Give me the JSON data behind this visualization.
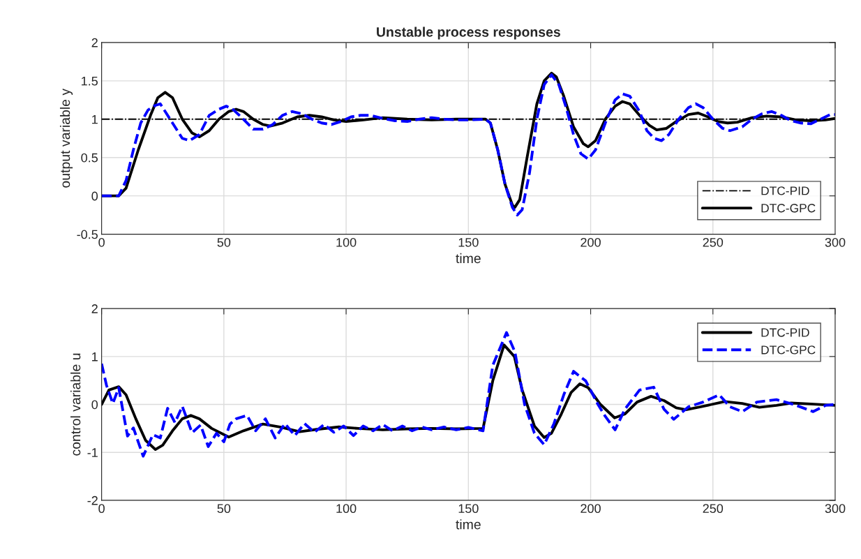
{
  "chart_data": [
    {
      "type": "line",
      "title": "Unstable process responses",
      "xlabel": "time",
      "ylabel": "output variable y",
      "xlim": [
        0,
        300
      ],
      "xticks": [
        0,
        50,
        100,
        150,
        200,
        250,
        300
      ],
      "ylim": [
        -0.5,
        2
      ],
      "yticks": [
        -0.5,
        0,
        0.5,
        1,
        1.5,
        2
      ],
      "grid": true,
      "legend": "bottom right",
      "series": [
        {
          "name": "DTC-PID",
          "color": "#000000",
          "line_style": "dashdot",
          "x": [
            0,
            300
          ],
          "values": [
            1,
            1
          ]
        },
        {
          "name": "DTC-GPC",
          "color": "#000000",
          "line_style": "solid",
          "x": [
            0,
            7,
            10,
            15,
            20,
            23,
            26,
            29,
            33,
            37,
            40,
            44,
            48,
            52,
            55,
            58,
            62,
            66,
            69,
            74,
            80,
            85,
            90,
            95,
            100,
            107,
            115,
            125,
            135,
            145,
            157,
            159,
            162,
            165,
            168,
            169,
            171,
            174,
            178,
            181,
            184,
            186,
            189,
            193,
            197,
            199,
            202,
            206,
            210,
            213,
            216,
            220,
            224,
            227,
            231,
            235,
            240,
            244,
            248,
            252,
            256,
            260,
            266,
            272,
            278,
            284,
            290,
            296,
            300
          ],
          "values": [
            0,
            0,
            0.1,
            0.6,
            1.05,
            1.28,
            1.35,
            1.28,
            1.0,
            0.82,
            0.77,
            0.85,
            1.0,
            1.1,
            1.13,
            1.1,
            1.0,
            0.93,
            0.91,
            0.95,
            1.03,
            1.05,
            1.03,
            0.99,
            0.97,
            0.99,
            1.02,
            1.0,
            0.99,
            1.0,
            1.0,
            0.95,
            0.6,
            0.15,
            -0.12,
            -0.15,
            -0.05,
            0.5,
            1.2,
            1.5,
            1.6,
            1.55,
            1.3,
            0.9,
            0.68,
            0.64,
            0.72,
            1.0,
            1.17,
            1.23,
            1.2,
            1.05,
            0.92,
            0.86,
            0.88,
            0.97,
            1.06,
            1.08,
            1.03,
            0.97,
            0.95,
            0.96,
            1.02,
            1.04,
            1.03,
            0.99,
            0.98,
            0.99,
            1.01
          ]
        },
        {
          "color": "#0000ff",
          "line_style": "dashed",
          "x": [
            0,
            7,
            10,
            13,
            16,
            19,
            22,
            24,
            26,
            29,
            33,
            36,
            40,
            44,
            48,
            51,
            54,
            58,
            62,
            66,
            70,
            74,
            78,
            82,
            86,
            90,
            94,
            98,
            102,
            106,
            110,
            115,
            120,
            125,
            130,
            135,
            140,
            145,
            150,
            157,
            159,
            162,
            165,
            168,
            170,
            172,
            175,
            178,
            181,
            184,
            187,
            190,
            193,
            196,
            199,
            202,
            206,
            210,
            213,
            216,
            220,
            223,
            226,
            229,
            232,
            236,
            240,
            243,
            246,
            250,
            254,
            257,
            262,
            266,
            270,
            274,
            278,
            282,
            286,
            290,
            294,
            298,
            300
          ],
          "values": [
            0,
            0,
            0.2,
            0.6,
            0.95,
            1.12,
            1.18,
            1.2,
            1.1,
            0.95,
            0.75,
            0.72,
            0.8,
            1.05,
            1.13,
            1.17,
            1.12,
            1.0,
            0.87,
            0.87,
            0.93,
            1.05,
            1.1,
            1.07,
            1.0,
            0.95,
            0.93,
            0.97,
            1.03,
            1.05,
            1.05,
            1.01,
            0.98,
            0.97,
            1.0,
            1.02,
            1.0,
            0.99,
            0.99,
            1.0,
            0.95,
            0.6,
            0.15,
            -0.15,
            -0.25,
            -0.18,
            0.3,
            1.0,
            1.45,
            1.58,
            1.45,
            1.15,
            0.8,
            0.55,
            0.48,
            0.6,
            0.95,
            1.25,
            1.33,
            1.3,
            1.1,
            0.85,
            0.75,
            0.72,
            0.8,
            1.0,
            1.15,
            1.2,
            1.15,
            1.0,
            0.88,
            0.85,
            0.9,
            1.0,
            1.07,
            1.1,
            1.05,
            0.98,
            0.95,
            0.94,
            1.0,
            1.06,
            1.06
          ]
        }
      ]
    },
    {
      "type": "line",
      "xlabel": "time",
      "ylabel": "control variable u",
      "xlim": [
        0,
        300
      ],
      "xticks": [
        0,
        50,
        100,
        150,
        200,
        250,
        300
      ],
      "ylim": [
        -2,
        2
      ],
      "yticks": [
        -2,
        -1,
        0,
        1,
        2
      ],
      "grid": true,
      "legend": "top right",
      "series": [
        {
          "name": "DTC-PID",
          "color": "#000000",
          "line_style": "solid",
          "x": [
            0,
            3,
            7,
            10,
            14,
            18,
            22,
            25,
            29,
            33,
            36.5,
            40,
            45,
            52,
            58,
            66,
            73,
            81,
            88,
            97,
            105,
            115,
            125,
            135,
            145,
            156,
            160,
            164.6,
            168.8,
            172,
            177,
            181,
            184,
            188,
            192,
            195.6,
            199,
            204,
            209.8,
            214,
            219,
            224.7,
            230,
            235,
            239,
            245,
            254.8,
            262,
            269,
            276,
            282,
            290,
            300
          ],
          "values": [
            0,
            0.3,
            0.37,
            0.2,
            -0.3,
            -0.75,
            -0.94,
            -0.85,
            -0.55,
            -0.3,
            -0.23,
            -0.3,
            -0.5,
            -0.68,
            -0.55,
            -0.41,
            -0.47,
            -0.57,
            -0.52,
            -0.47,
            -0.5,
            -0.53,
            -0.51,
            -0.5,
            -0.51,
            -0.5,
            0.5,
            1.24,
            1.0,
            0.3,
            -0.45,
            -0.69,
            -0.6,
            -0.2,
            0.25,
            0.43,
            0.35,
            0.0,
            -0.28,
            -0.2,
            0.05,
            0.17,
            0.08,
            -0.07,
            -0.11,
            -0.05,
            0.06,
            0.02,
            -0.06,
            -0.02,
            0.03,
            0.01,
            -0.02
          ]
        },
        {
          "name": "DTC-GPC",
          "color": "#0000ff",
          "line_style": "dashed",
          "x": [
            0,
            2,
            4.6,
            7,
            10.6,
            13,
            17,
            21,
            24,
            27,
            30,
            33,
            37,
            40.5,
            43.6,
            47,
            50,
            52.5,
            55,
            59.5,
            63,
            67,
            71,
            75,
            79,
            83,
            87,
            91,
            95,
            99,
            103,
            107,
            111,
            115,
            119,
            123,
            127,
            131,
            135,
            140,
            145,
            150,
            156,
            160,
            165.6,
            169,
            173,
            177,
            181,
            185,
            189,
            193,
            198,
            203,
            206,
            210,
            214,
            217,
            220,
            225.8,
            230,
            234,
            240,
            246,
            252.6,
            257,
            262,
            268,
            276,
            283,
            291,
            296,
            300
          ],
          "values": [
            0.85,
            0.4,
            0.02,
            0.35,
            -0.66,
            -0.49,
            -1.08,
            -0.63,
            -0.7,
            -0.08,
            -0.38,
            -0.04,
            -0.59,
            -0.43,
            -0.88,
            -0.6,
            -0.78,
            -0.41,
            -0.3,
            -0.23,
            -0.55,
            -0.3,
            -0.7,
            -0.4,
            -0.65,
            -0.4,
            -0.58,
            -0.42,
            -0.58,
            -0.45,
            -0.65,
            -0.45,
            -0.55,
            -0.42,
            -0.55,
            -0.45,
            -0.55,
            -0.47,
            -0.53,
            -0.47,
            -0.53,
            -0.48,
            -0.55,
            0.82,
            1.5,
            1.1,
            0.0,
            -0.6,
            -0.84,
            -0.4,
            0.2,
            0.69,
            0.49,
            0.0,
            -0.25,
            -0.53,
            -0.1,
            0.1,
            0.3,
            0.36,
            -0.1,
            -0.31,
            -0.05,
            0.05,
            0.2,
            -0.05,
            -0.15,
            0.05,
            0.1,
            0.0,
            -0.15,
            -0.02,
            0.0
          ]
        }
      ]
    }
  ]
}
